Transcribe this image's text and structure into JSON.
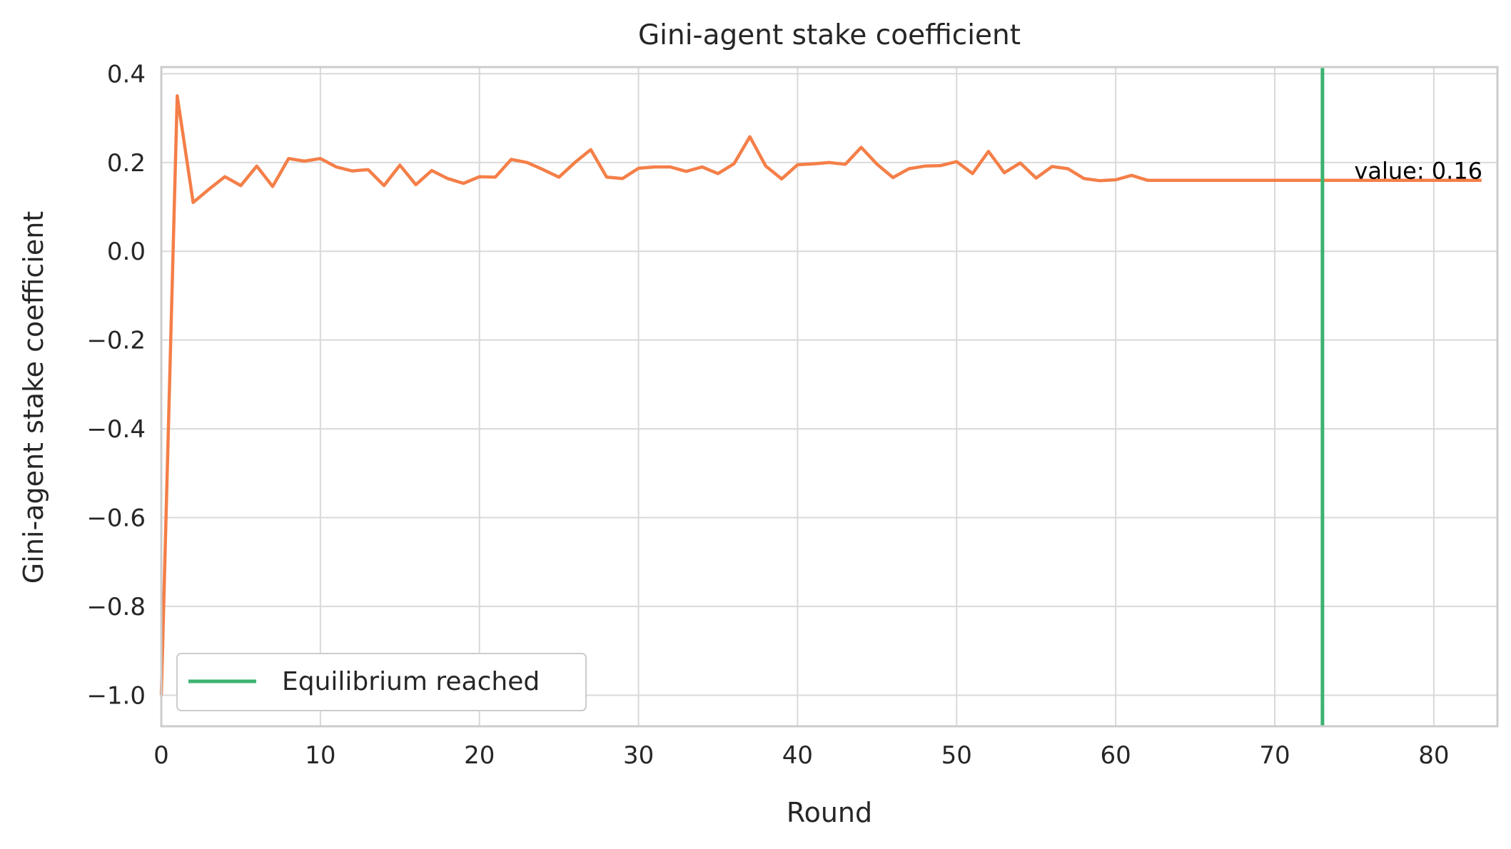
{
  "chart_data": {
    "type": "line",
    "title": "Gini-agent stake coefficient",
    "xlabel": "Round",
    "ylabel": "Gini-agent stake coefficient",
    "xlim": [
      0,
      84
    ],
    "ylim": [
      -1.07,
      0.415
    ],
    "xticks": [
      0,
      10,
      20,
      30,
      40,
      50,
      60,
      70,
      80
    ],
    "yticks": [
      -1.0,
      -0.8,
      -0.6,
      -0.4,
      -0.2,
      0.0,
      0.2,
      0.4
    ],
    "ytick_labels": [
      "−1.0",
      "−0.8",
      "−0.6",
      "−0.4",
      "−0.2",
      "0.0",
      "0.2",
      "0.4"
    ],
    "grid": true,
    "series": [
      {
        "color": "#f47f48",
        "x": [
          0,
          1,
          2,
          3,
          4,
          5,
          6,
          7,
          8,
          9,
          10,
          11,
          12,
          13,
          14,
          15,
          16,
          17,
          18,
          19,
          20,
          21,
          22,
          23,
          24,
          25,
          26,
          27,
          28,
          29,
          30,
          31,
          32,
          33,
          34,
          35,
          36,
          37,
          38,
          39,
          40,
          41,
          42,
          43,
          44,
          45,
          46,
          47,
          48,
          49,
          50,
          51,
          52,
          53,
          54,
          55,
          56,
          57,
          58,
          59,
          60,
          61,
          62,
          63,
          64,
          65,
          66,
          67,
          68,
          69,
          70,
          71,
          72,
          73,
          74,
          75,
          76,
          77,
          78,
          79,
          80,
          81,
          82,
          83
        ],
        "values": [
          -1.0,
          0.35,
          0.11,
          0.14,
          0.168,
          0.148,
          0.192,
          0.146,
          0.209,
          0.203,
          0.209,
          0.19,
          0.181,
          0.184,
          0.148,
          0.194,
          0.15,
          0.182,
          0.164,
          0.153,
          0.168,
          0.167,
          0.207,
          0.2,
          0.184,
          0.167,
          0.2,
          0.229,
          0.167,
          0.164,
          0.187,
          0.19,
          0.19,
          0.18,
          0.19,
          0.175,
          0.197,
          0.258,
          0.192,
          0.163,
          0.195,
          0.197,
          0.2,
          0.196,
          0.234,
          0.196,
          0.166,
          0.186,
          0.192,
          0.193,
          0.202,
          0.175,
          0.225,
          0.177,
          0.199,
          0.165,
          0.191,
          0.186,
          0.164,
          0.159,
          0.161,
          0.171,
          0.16,
          0.16,
          0.16,
          0.16,
          0.16,
          0.16,
          0.16,
          0.16,
          0.16,
          0.16,
          0.16,
          0.16,
          0.16,
          0.16,
          0.16,
          0.16,
          0.16,
          0.16,
          0.16,
          0.16,
          0.16,
          0.16
        ]
      }
    ],
    "vline": {
      "x": 73,
      "label": "Equilibrium reached",
      "color": "#3cb371"
    },
    "annotation": {
      "text": "value: 0.16",
      "x": 75,
      "y": 0.16
    },
    "legend": {
      "position": "lower-left",
      "entries": [
        "Equilibrium reached"
      ]
    },
    "colors": {
      "grid": "#d9d9d9",
      "spine": "#cccccc",
      "text": "#262626"
    }
  }
}
